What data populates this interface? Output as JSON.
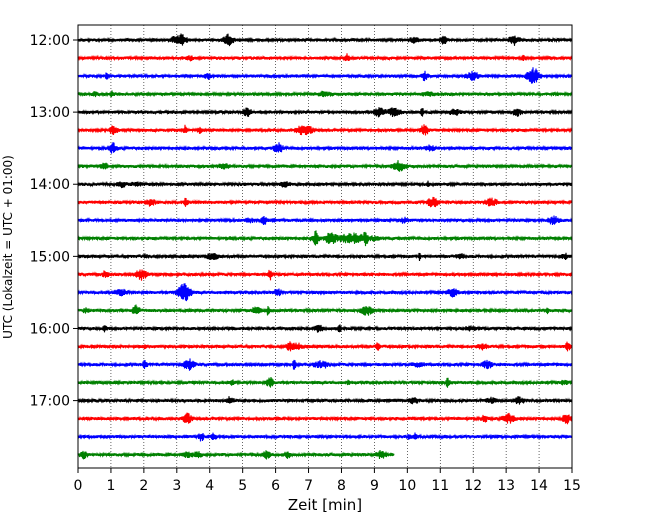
{
  "chart_data": {
    "type": "line",
    "title": "",
    "xlabel": "Zeit  [min]",
    "ylabel": "UTC (Lokalzeit = UTC + 01:00)",
    "xlim": [
      0,
      15
    ],
    "x_ticks": [
      0,
      1,
      2,
      3,
      4,
      5,
      6,
      7,
      8,
      9,
      10,
      11,
      12,
      13,
      14,
      15
    ],
    "x_tick_labels": [
      "0",
      "1",
      "2",
      "3",
      "4",
      "5",
      "6",
      "7",
      "8",
      "9",
      "10",
      "11",
      "12",
      "13",
      "14",
      "15"
    ],
    "y_ticks": [
      "12:00",
      "13:00",
      "14:00",
      "15:00",
      "16:00",
      "17:00"
    ],
    "grid": "vertical-dotted",
    "colors": [
      "#000000",
      "#ff0000",
      "#0000ff",
      "#008000"
    ],
    "traces": [
      {
        "time": "12:00",
        "color": "#000000",
        "end_min": 15
      },
      {
        "time": "12:15",
        "color": "#ff0000",
        "end_min": 15
      },
      {
        "time": "12:30",
        "color": "#0000ff",
        "end_min": 15
      },
      {
        "time": "12:45",
        "color": "#008000",
        "end_min": 15
      },
      {
        "time": "13:00",
        "color": "#000000",
        "end_min": 15
      },
      {
        "time": "13:15",
        "color": "#ff0000",
        "end_min": 15
      },
      {
        "time": "13:30",
        "color": "#0000ff",
        "end_min": 15
      },
      {
        "time": "13:45",
        "color": "#008000",
        "end_min": 15
      },
      {
        "time": "14:00",
        "color": "#000000",
        "end_min": 15
      },
      {
        "time": "14:15",
        "color": "#ff0000",
        "end_min": 15
      },
      {
        "time": "14:30",
        "color": "#0000ff",
        "end_min": 15
      },
      {
        "time": "14:45",
        "color": "#008000",
        "end_min": 15
      },
      {
        "time": "15:00",
        "color": "#000000",
        "end_min": 15
      },
      {
        "time": "15:15",
        "color": "#ff0000",
        "end_min": 15
      },
      {
        "time": "15:30",
        "color": "#0000ff",
        "end_min": 15
      },
      {
        "time": "15:45",
        "color": "#008000",
        "end_min": 15
      },
      {
        "time": "16:00",
        "color": "#000000",
        "end_min": 15
      },
      {
        "time": "16:15",
        "color": "#ff0000",
        "end_min": 15
      },
      {
        "time": "16:30",
        "color": "#0000ff",
        "end_min": 15
      },
      {
        "time": "16:45",
        "color": "#008000",
        "end_min": 15
      },
      {
        "time": "17:00",
        "color": "#000000",
        "end_min": 15
      },
      {
        "time": "17:15",
        "color": "#ff0000",
        "end_min": 15
      },
      {
        "time": "17:30",
        "color": "#0000ff",
        "end_min": 15
      },
      {
        "time": "17:45",
        "color": "#008000",
        "end_min": 9.6
      }
    ]
  }
}
